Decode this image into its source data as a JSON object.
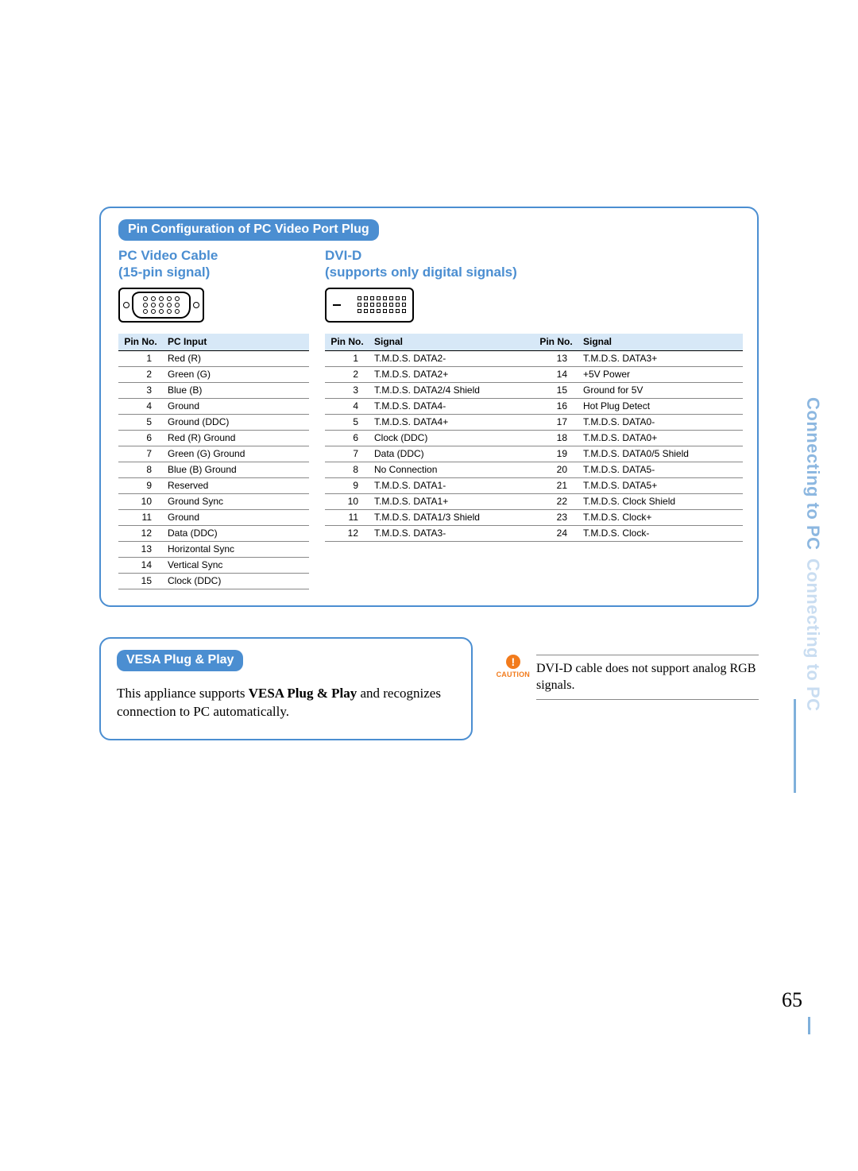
{
  "colors": {
    "accent": "#4b8ed1",
    "accent_light": "#8cb7e0",
    "accent_faded": "#c9ddf1",
    "header_bg": "#d7e8f7",
    "caution": "#f27b1c",
    "rule": "#888888",
    "text": "#000000",
    "background": "#ffffff"
  },
  "typography": {
    "body_font": "Arial, Helvetica, sans-serif",
    "serif_font": "Georgia, Times New Roman, serif",
    "pill_fontsize": 16,
    "subheading_fontsize": 17,
    "table_fontsize": 12,
    "body_fontsize": 17,
    "tab_fontsize": 22,
    "pagenum_fontsize": 26
  },
  "section1": {
    "title": "Pin Configuration of PC Video Port Plug",
    "left_heading_line1": "PC Video Cable",
    "left_heading_line2": "(15-pin signal)",
    "right_heading_line1": "DVI-D",
    "right_heading_line2": "(supports only digital signals)"
  },
  "vga_table": {
    "columns": [
      "Pin No.",
      "PC Input"
    ],
    "rows": [
      [
        "1",
        "Red (R)"
      ],
      [
        "2",
        "Green (G)"
      ],
      [
        "3",
        "Blue (B)"
      ],
      [
        "4",
        "Ground"
      ],
      [
        "5",
        "Ground  (DDC)"
      ],
      [
        "6",
        "Red (R) Ground"
      ],
      [
        "7",
        "Green (G) Ground"
      ],
      [
        "8",
        "Blue (B) Ground"
      ],
      [
        "9",
        "Reserved"
      ],
      [
        "10",
        "Ground Sync"
      ],
      [
        "11",
        "Ground"
      ],
      [
        "12",
        "Data (DDC)"
      ],
      [
        "13",
        "Horizontal Sync"
      ],
      [
        "14",
        "Vertical Sync"
      ],
      [
        "15",
        "Clock (DDC)"
      ]
    ]
  },
  "dvi_table": {
    "columns": [
      "Pin No.",
      "Signal",
      "Pin No.",
      "Signal"
    ],
    "rows": [
      [
        "1",
        "T.M.D.S. DATA2-",
        "13",
        "T.M.D.S. DATA3+"
      ],
      [
        "2",
        "T.M.D.S. DATA2+",
        "14",
        "+5V Power"
      ],
      [
        "3",
        "T.M.D.S. DATA2/4 Shield",
        "15",
        "Ground for 5V"
      ],
      [
        "4",
        "T.M.D.S. DATA4-",
        "16",
        "Hot Plug Detect"
      ],
      [
        "5",
        "T.M.D.S. DATA4+",
        "17",
        "T.M.D.S. DATA0-"
      ],
      [
        "6",
        "Clock (DDC)",
        "18",
        "T.M.D.S. DATA0+"
      ],
      [
        "7",
        "Data (DDC)",
        "19",
        "T.M.D.S. DATA0/5 Shield"
      ],
      [
        "8",
        "No Connection",
        "20",
        "T.M.D.S. DATA5-"
      ],
      [
        "9",
        "T.M.D.S. DATA1-",
        "21",
        "T.M.D.S. DATA5+"
      ],
      [
        "10",
        "T.M.D.S. DATA1+",
        "22",
        "T.M.D.S. Clock Shield"
      ],
      [
        "11",
        "T.M.D.S. DATA1/3 Shield",
        "23",
        "T.M.D.S. Clock+"
      ],
      [
        "12",
        "T.M.D.S. DATA3-",
        "24",
        "T.M.D.S. Clock-"
      ]
    ]
  },
  "vesa": {
    "title": "VESA Plug & Play",
    "text_pre": "This appliance supports ",
    "text_bold": "VESA Plug & Play",
    "text_post": " and recognizes connection to PC automatically."
  },
  "caution": {
    "bang": "!",
    "label": "CAUTION",
    "text": "DVI-D cable does not support analog RGB signals."
  },
  "side_tabs": {
    "active": "Connecting to PC",
    "faded": "Connecting to PC"
  },
  "page_number": "65"
}
